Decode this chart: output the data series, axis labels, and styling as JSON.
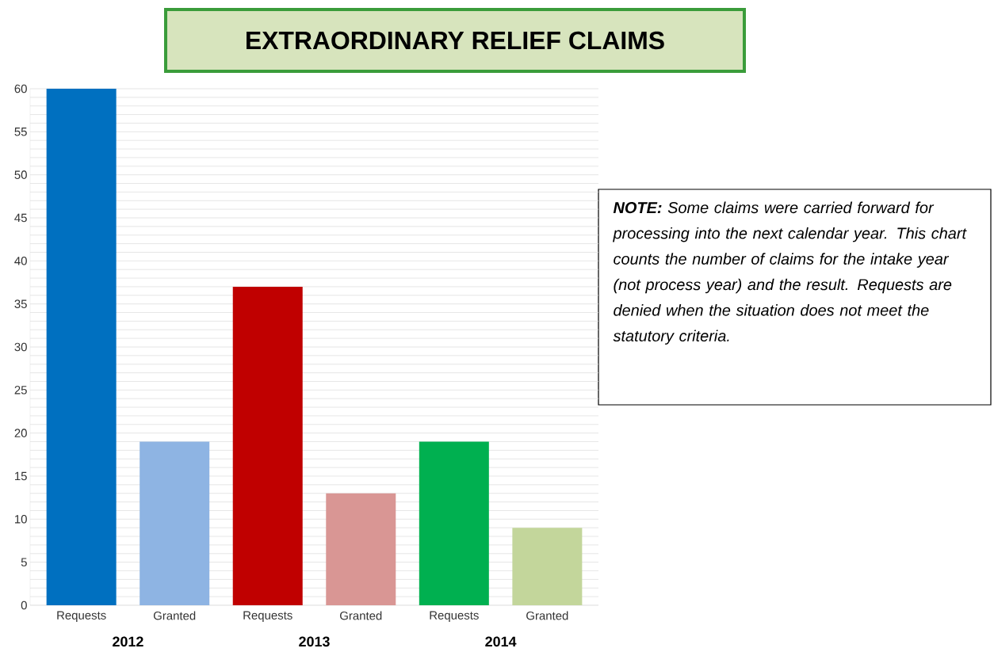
{
  "chart_data": {
    "type": "bar",
    "title": "EXTRAORDINARY RELIEF CLAIMS",
    "categories": [
      "Requests",
      "Granted",
      "Requests",
      "Granted",
      "Requests",
      "Granted"
    ],
    "values": [
      60,
      19,
      37,
      13,
      19,
      9
    ],
    "colors": [
      "#0070c0",
      "#8eb4e3",
      "#c00000",
      "#d99694",
      "#00b050",
      "#c3d69b"
    ],
    "ylim": [
      0,
      60
    ],
    "yticks": [
      0,
      5,
      10,
      15,
      20,
      25,
      30,
      35,
      40,
      45,
      50,
      55,
      60
    ],
    "grid": "y",
    "annotations": [
      "**NOTE:**   Some claims were carried forward for processing into the next calendar year.  This chart counts the number of claims for the intake year (not process year) and the result.   Requests are denied when the situation does not meet the statutory criteria.",
      "2012",
      "2013",
      "2014"
    ]
  }
}
